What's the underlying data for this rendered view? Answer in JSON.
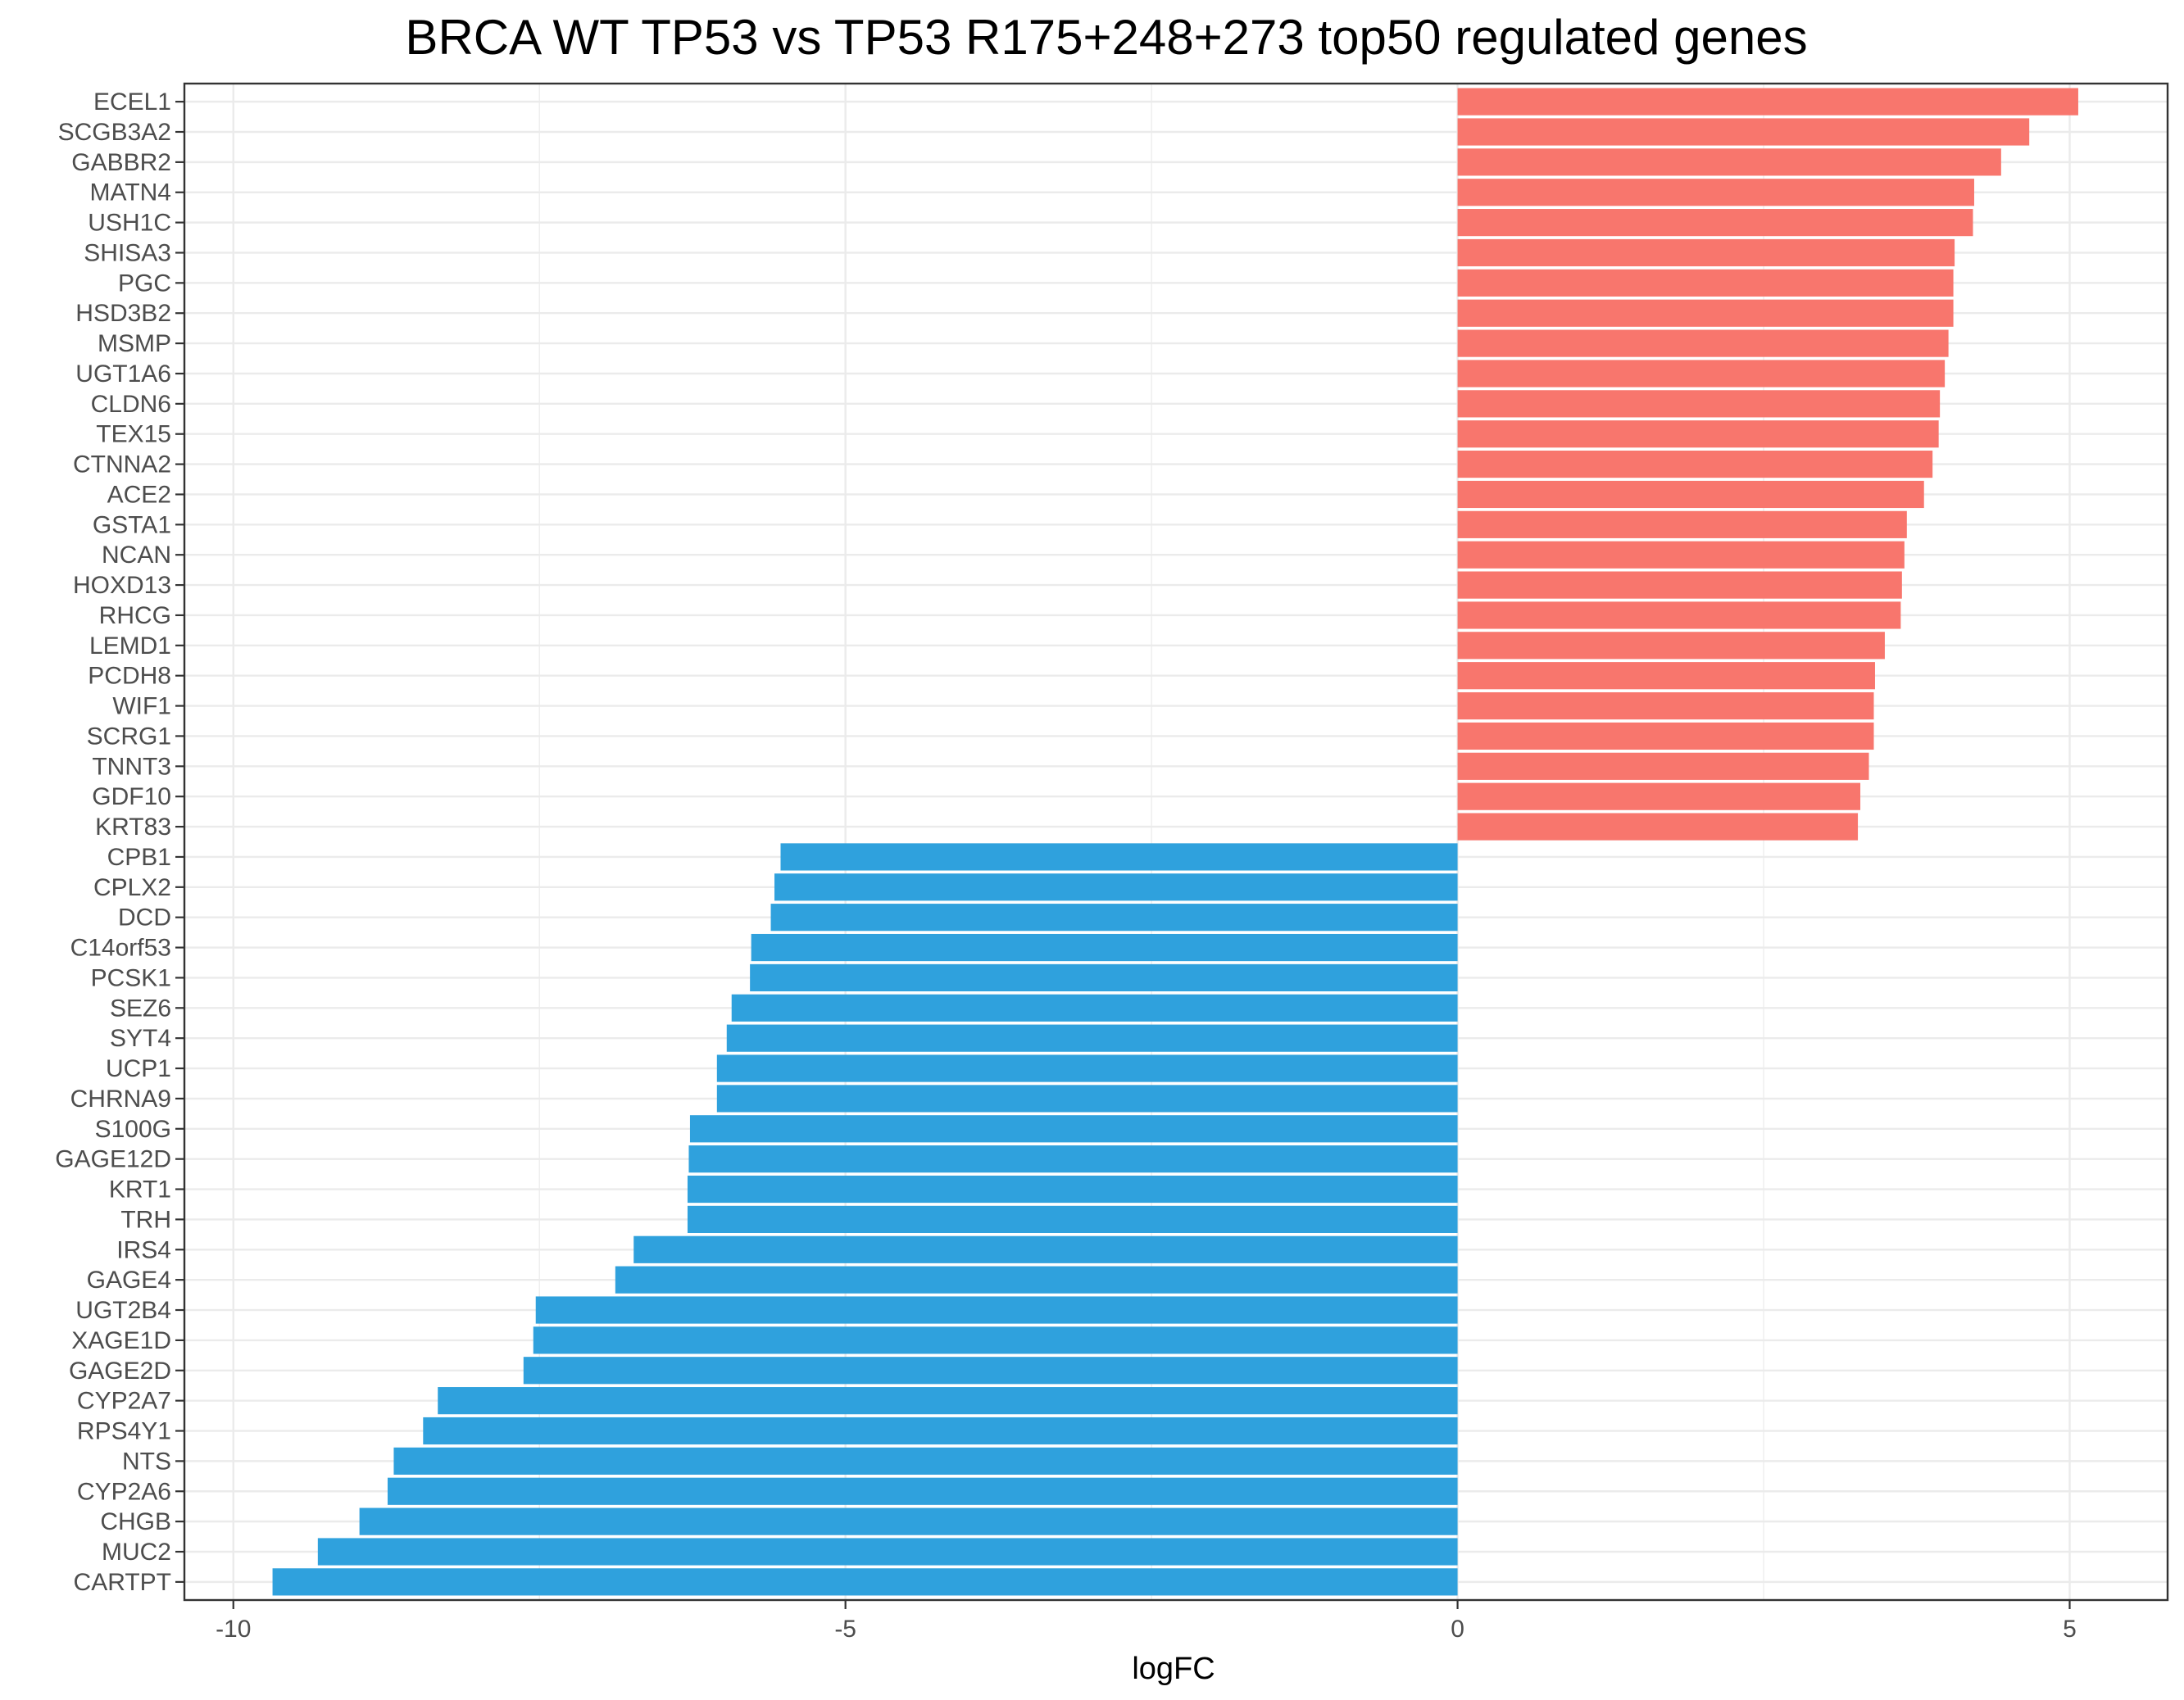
{
  "chart_data": {
    "type": "bar",
    "orientation": "horizontal",
    "title": "BRCA WT TP53 vs TP53 R175+248+273 top50 regulated genes",
    "xlabel": "logFC",
    "ylabel": "",
    "xlim": [
      -10.4,
      5.8
    ],
    "xticks": [
      -10,
      -5,
      0,
      5
    ],
    "xtick_labels": [
      "-10",
      "-5",
      "0",
      "5"
    ],
    "grid": true,
    "colors": {
      "up": "#F8766D",
      "down": "#2FA1DD"
    },
    "categories": [
      "ECEL1",
      "SCGB3A2",
      "GABBR2",
      "MATN4",
      "USH1C",
      "SHISA3",
      "PGC",
      "HSD3B2",
      "MSMP",
      "UGT1A6",
      "CLDN6",
      "TEX15",
      "CTNNA2",
      "ACE2",
      "GSTA1",
      "NCAN",
      "HOXD13",
      "RHCG",
      "LEMD1",
      "PCDH8",
      "WIF1",
      "SCRG1",
      "TNNT3",
      "GDF10",
      "KRT83",
      "CPB1",
      "CPLX2",
      "DCD",
      "C14orf53",
      "PCSK1",
      "SEZ6",
      "SYT4",
      "UCP1",
      "CHRNA9",
      "S100G",
      "GAGE12D",
      "KRT1",
      "TRH",
      "IRS4",
      "GAGE4",
      "UGT2B4",
      "XAGE1D",
      "GAGE2D",
      "CYP2A7",
      "RPS4Y1",
      "NTS",
      "CYP2A6",
      "CHGB",
      "MUC2",
      "CARTPT"
    ],
    "values": [
      5.07,
      4.67,
      4.44,
      4.22,
      4.21,
      4.06,
      4.05,
      4.05,
      4.01,
      3.98,
      3.94,
      3.93,
      3.88,
      3.81,
      3.67,
      3.65,
      3.63,
      3.62,
      3.49,
      3.41,
      3.4,
      3.4,
      3.36,
      3.29,
      3.27,
      -5.53,
      -5.58,
      -5.61,
      -5.77,
      -5.78,
      -5.93,
      -5.97,
      -6.05,
      -6.05,
      -6.27,
      -6.28,
      -6.29,
      -6.29,
      -6.73,
      -6.88,
      -7.53,
      -7.55,
      -7.63,
      -8.33,
      -8.45,
      -8.69,
      -8.74,
      -8.97,
      -9.31,
      -9.68
    ]
  }
}
